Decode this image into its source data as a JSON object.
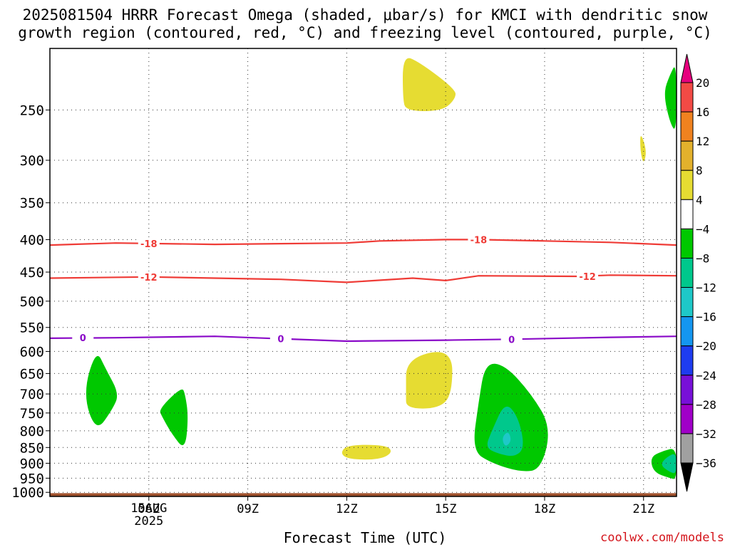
{
  "header": {
    "title_line1": "2025081504 HRRR Forecast Omega (shaded, μbar/s) for KMCI with dendritic snow",
    "title_line2": "growth region (contoured, red, °C) and freezing level (contoured, purple, °C)"
  },
  "chart_data": {
    "type": "time-height cross section",
    "xlabel": "Forecast Time (UTC)",
    "x_tick_labels": [
      "06Z",
      "09Z",
      "12Z",
      "15Z",
      "18Z",
      "21Z"
    ],
    "x_ticks_hours": [
      6,
      9,
      12,
      15,
      18,
      21
    ],
    "xlim_hours": [
      3,
      22
    ],
    "date_label": [
      "15AUG",
      "2025"
    ],
    "ylabel": "",
    "y_ticks_mb": [
      250,
      300,
      350,
      400,
      450,
      500,
      550,
      600,
      650,
      700,
      750,
      800,
      850,
      900,
      950,
      1000
    ],
    "ylim_mb": [
      1015,
      200
    ],
    "y_scale": "log-pressure",
    "grid": "dotted",
    "colorbar": {
      "levels": [
        20,
        16,
        12,
        8,
        4,
        -4,
        -8,
        -12,
        -16,
        -20,
        -24,
        -28,
        -32,
        -36
      ],
      "colors": [
        "#e6007e",
        "#f24a45",
        "#f0821f",
        "#e3b12c",
        "#e6dc32",
        "#ffffff",
        "#00c800",
        "#00c88c",
        "#1ec8c8",
        "#1496f0",
        "#1e3cf0",
        "#7810d8",
        "#a000c8",
        "#a0a0a0",
        "#000000"
      ]
    },
    "contours": [
      {
        "name": "dgz_-18",
        "color": "#ef3b36",
        "label": "-18",
        "points": [
          [
            3,
            408
          ],
          [
            5,
            405
          ],
          [
            8,
            407
          ],
          [
            12,
            405
          ],
          [
            13,
            402
          ],
          [
            15,
            400
          ],
          [
            16,
            400
          ],
          [
            18,
            402
          ],
          [
            20,
            404
          ],
          [
            22,
            408
          ]
        ],
        "label_at": [
          [
            6,
            406
          ],
          [
            16,
            400
          ]
        ]
      },
      {
        "name": "dgz_-12",
        "color": "#ef3b36",
        "label": "-12",
        "points": [
          [
            3,
            460
          ],
          [
            6,
            458
          ],
          [
            8,
            460
          ],
          [
            10,
            462
          ],
          [
            12,
            467
          ],
          [
            14,
            460
          ],
          [
            15,
            464
          ],
          [
            16,
            456
          ],
          [
            19,
            457
          ],
          [
            20,
            455
          ],
          [
            22,
            456
          ]
        ],
        "label_at": [
          [
            6,
            458
          ],
          [
            19.3,
            457
          ]
        ]
      },
      {
        "name": "freezing_0",
        "color": "#8a0ac8",
        "label": "0",
        "points": [
          [
            3,
            572
          ],
          [
            5,
            571
          ],
          [
            8,
            568
          ],
          [
            10,
            573
          ],
          [
            12,
            578
          ],
          [
            15,
            576
          ],
          [
            17,
            574
          ],
          [
            20,
            570
          ],
          [
            22,
            568
          ]
        ],
        "label_at": [
          [
            4,
            571
          ],
          [
            10,
            573
          ],
          [
            17,
            574
          ]
        ]
      }
    ],
    "shaded_regions": [
      {
        "value_range": [
          4,
          8
        ],
        "color": "#e6dc32",
        "outline": [
          [
            13.7,
            205
          ],
          [
            14.2,
            210
          ],
          [
            15.3,
            232
          ],
          [
            15.3,
            240
          ],
          [
            14.9,
            251
          ],
          [
            13.8,
            251
          ],
          [
            13.7,
            240
          ]
        ]
      },
      {
        "value_range": [
          4,
          8
        ],
        "color": "#e6dc32",
        "outline": [
          [
            20.9,
            270
          ],
          [
            21.1,
            290
          ],
          [
            21.0,
            305
          ],
          [
            20.9,
            290
          ]
        ]
      },
      {
        "value_range": [
          4,
          8
        ],
        "color": "#e6dc32",
        "outline": [
          [
            13.8,
            615
          ],
          [
            15.2,
            592
          ],
          [
            15.2,
            700
          ],
          [
            14.8,
            738
          ],
          [
            13.8,
            738
          ],
          [
            13.8,
            700
          ]
        ]
      },
      {
        "value_range": [
          4,
          8
        ],
        "color": "#e6dc32",
        "outline": [
          [
            11.8,
            870
          ],
          [
            12.0,
            842
          ],
          [
            13.2,
            842
          ],
          [
            13.4,
            865
          ],
          [
            13.0,
            888
          ],
          [
            12.1,
            888
          ]
        ]
      },
      {
        "value_range": [
          -8,
          -4
        ],
        "color": "#00c800",
        "outline": [
          [
            4,
            700
          ],
          [
            4.4,
            595
          ],
          [
            4.7,
            640
          ],
          [
            5.1,
            700
          ],
          [
            4.9,
            740
          ],
          [
            4.4,
            805
          ]
        ]
      },
      {
        "value_range": [
          -8,
          -4
        ],
        "color": "#00c800",
        "outline": [
          [
            6.3,
            740
          ],
          [
            7.0,
            682
          ],
          [
            7.1,
            700
          ],
          [
            7.2,
            760
          ],
          [
            7.1,
            860
          ],
          [
            6.7,
            810
          ],
          [
            6.4,
            760
          ]
        ]
      },
      {
        "value_range": [
          -8,
          -4
        ],
        "color": "#00c800",
        "outline": [
          [
            15.8,
            860
          ],
          [
            16.0,
            720
          ],
          [
            16.2,
            625
          ],
          [
            16.8,
            630
          ],
          [
            17.6,
            700
          ],
          [
            18.2,
            790
          ],
          [
            17.9,
            920
          ],
          [
            17.3,
            930
          ],
          [
            16.4,
            900
          ]
        ]
      },
      {
        "value_range": [
          -12,
          -8
        ],
        "color": "#00c88c",
        "outline": [
          [
            16.2,
            850
          ],
          [
            16.4,
            800
          ],
          [
            16.8,
            720
          ],
          [
            17.2,
            760
          ],
          [
            17.4,
            850
          ],
          [
            17.1,
            880
          ],
          [
            16.6,
            870
          ]
        ]
      },
      {
        "value_range": [
          -16,
          -12
        ],
        "color": "#1ec8c8",
        "outline": [
          [
            16.7,
            820
          ],
          [
            16.9,
            800
          ],
          [
            17.0,
            830
          ],
          [
            16.8,
            850
          ]
        ]
      },
      {
        "value_range": [
          -8,
          -4
        ],
        "color": "#00c800",
        "outline": [
          [
            22.0,
            210
          ],
          [
            21.8,
            220
          ],
          [
            21.6,
            235
          ],
          [
            21.8,
            262
          ],
          [
            22.0,
            272
          ]
        ]
      },
      {
        "value_range": [
          -8,
          -4
        ],
        "color": "#00c800",
        "outline": [
          [
            22.0,
            850
          ],
          [
            21.6,
            860
          ],
          [
            21.2,
            880
          ],
          [
            21.3,
            930
          ],
          [
            21.8,
            950
          ],
          [
            22.0,
            955
          ]
        ]
      },
      {
        "value_range": [
          -12,
          -8
        ],
        "color": "#00c88c",
        "outline": [
          [
            22.0,
            865
          ],
          [
            21.7,
            880
          ],
          [
            21.5,
            905
          ],
          [
            21.8,
            930
          ],
          [
            22.0,
            935
          ]
        ]
      }
    ],
    "ground_color": "#a0522d"
  },
  "footer": {
    "credit": "coolwx.com/models"
  }
}
